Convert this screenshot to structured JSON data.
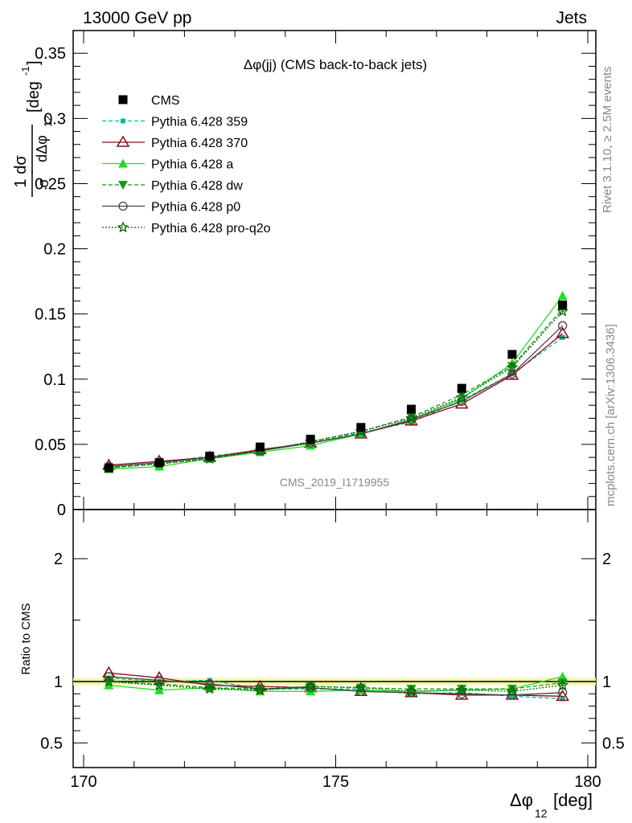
{
  "header": {
    "left": "13000 GeV pp",
    "right": "Jets"
  },
  "side": {
    "rivet": "Rivet 3.1.10, ≥ 2.5M events",
    "mcplots": "mcplots.cern.ch [arXiv:1306.3436]"
  },
  "watermark": "CMS_2019_I1719955",
  "ratio_ylabel": "Ratio to CMS",
  "chart_data": [
    {
      "type": "line",
      "title": "Δφ(jj) (CMS back-to-back jets)",
      "ylabel": "1/σ dσ/dΔφ12 [deg⁻¹]",
      "ylim": [
        0,
        0.36
      ],
      "yticks": [
        0,
        0.05,
        0.1,
        0.15,
        0.2,
        0.25,
        0.3,
        0.35
      ],
      "ytick_labels": [
        "0",
        "0.05",
        "0.1",
        "0.15",
        "0.2",
        "0.25",
        "0.3",
        "0.35"
      ],
      "legend_position": "top-left",
      "x": [
        170.5,
        171.5,
        172.5,
        173.5,
        174.5,
        175.5,
        176.5,
        177.5,
        178.5,
        179.5
      ],
      "series": [
        {
          "name": "CMS",
          "color": "#000000",
          "style": "points",
          "marker": "square",
          "values": [
            0.032,
            0.036,
            0.041,
            0.048,
            0.054,
            0.063,
            0.077,
            0.093,
            0.119,
            0.157
          ]
        },
        {
          "name": "Pythia 6.428 359",
          "color": "#00c089",
          "style": "dashed",
          "marker": "small-square",
          "values": [
            0.033,
            0.036,
            0.041,
            0.045,
            0.051,
            0.059,
            0.067,
            0.084,
            0.104,
            0.132
          ]
        },
        {
          "name": "Pythia 6.428 370",
          "color": "#8b0a1a",
          "style": "solid",
          "marker": "open-triangle",
          "values": [
            0.034,
            0.037,
            0.04,
            0.046,
            0.051,
            0.058,
            0.068,
            0.081,
            0.103,
            0.135
          ]
        },
        {
          "name": "Pythia 6.428 a",
          "color": "#22dd22",
          "style": "solid",
          "marker": "triangle",
          "values": [
            0.031,
            0.033,
            0.039,
            0.044,
            0.049,
            0.058,
            0.069,
            0.085,
            0.112,
            0.164
          ]
        },
        {
          "name": "Pythia 6.428 dw",
          "color": "#1a9a1a",
          "style": "dashed",
          "marker": "down-triangle",
          "values": [
            0.032,
            0.035,
            0.039,
            0.045,
            0.052,
            0.06,
            0.071,
            0.088,
            0.11,
            0.154
          ]
        },
        {
          "name": "Pythia 6.428 p0",
          "color": "#444444",
          "style": "solid",
          "marker": "open-circle",
          "values": [
            0.033,
            0.036,
            0.04,
            0.045,
            0.051,
            0.058,
            0.069,
            0.083,
            0.104,
            0.141
          ]
        },
        {
          "name": "Pythia 6.428 pro-q2o",
          "color": "#006600",
          "style": "dotted",
          "marker": "star",
          "values": [
            0.032,
            0.035,
            0.039,
            0.045,
            0.052,
            0.06,
            0.07,
            0.086,
            0.109,
            0.152
          ]
        }
      ]
    },
    {
      "type": "line",
      "ylabel": "Ratio to CMS",
      "xlabel": "Δφ12 [deg]",
      "xlim": [
        170,
        180
      ],
      "xticks": [
        170,
        175,
        180
      ],
      "xtick_labels": [
        "170",
        "175",
        "180"
      ],
      "ylim": [
        0.3,
        2.4
      ],
      "yticks": [
        0.5,
        1,
        2
      ],
      "ytick_labels": [
        "0.5",
        "1",
        "2"
      ],
      "band": [
        0.97,
        1.03
      ],
      "x": [
        170.5,
        171.5,
        172.5,
        173.5,
        174.5,
        175.5,
        176.5,
        177.5,
        178.5,
        179.5
      ],
      "series": [
        {
          "name": "Pythia 6.428 359",
          "values": [
            1.03,
            1.0,
            1.01,
            0.94,
            0.94,
            0.94,
            0.9,
            0.91,
            0.88,
            0.86
          ]
        },
        {
          "name": "Pythia 6.428 370",
          "values": [
            1.07,
            1.03,
            0.97,
            0.96,
            0.95,
            0.92,
            0.91,
            0.89,
            0.89,
            0.88
          ]
        },
        {
          "name": "Pythia 6.428 a",
          "values": [
            0.97,
            0.93,
            0.95,
            0.92,
            0.92,
            0.93,
            0.92,
            0.93,
            0.94,
            1.04
          ]
        },
        {
          "name": "Pythia 6.428 dw",
          "values": [
            1.0,
            0.98,
            0.95,
            0.94,
            0.96,
            0.95,
            0.94,
            0.94,
            0.94,
            0.99
          ]
        },
        {
          "name": "Pythia 6.428 p0",
          "values": [
            1.04,
            1.01,
            0.98,
            0.94,
            0.95,
            0.92,
            0.91,
            0.9,
            0.89,
            0.91
          ]
        },
        {
          "name": "Pythia 6.428 pro-q2o",
          "values": [
            1.0,
            0.97,
            0.94,
            0.93,
            0.96,
            0.95,
            0.92,
            0.93,
            0.92,
            0.97
          ]
        }
      ]
    }
  ]
}
